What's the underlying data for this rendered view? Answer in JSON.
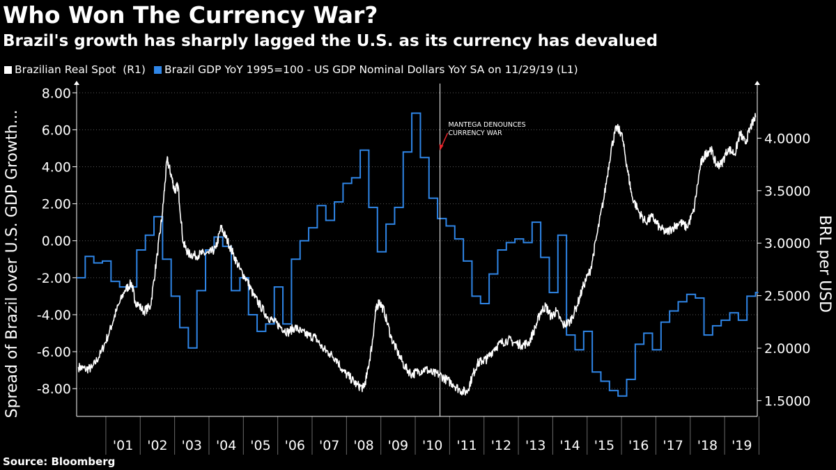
{
  "title": "Who Won The Currency War?",
  "subtitle": "Brazil's growth has sharply lagged the U.S. as its currency has devalued",
  "source": "Source: Bloomberg",
  "colors": {
    "background": "#000000",
    "brl_series": "#ffffff",
    "gdp_series": "#2f86e8",
    "annotation_arrow": "#e8262c"
  },
  "chart_data": {
    "type": "line",
    "legend": [
      {
        "name": "Brazilian Real Spot  (R1)",
        "color": "#ffffff"
      },
      {
        "name": "Brazil GDP YoY 1995=100 - US GDP Nominal Dollars YoY SA on 11/29/19 (L1)",
        "color": "#2f86e8"
      }
    ],
    "left_axis": {
      "label": "Spread of Brazil over U.S. GDP Growth...",
      "range": [
        -9.5,
        8.5
      ],
      "ticks": [
        8,
        6,
        4,
        2,
        0,
        -2,
        -4,
        -6,
        -8
      ],
      "tick_labels": [
        "8.00",
        "6.00",
        "4.00",
        "2.00",
        "0.00",
        "-2.00",
        "-4.00",
        "-6.00",
        "-8.00"
      ]
    },
    "right_axis": {
      "label": "BRL per USD",
      "range": [
        1.35,
        4.52
      ],
      "ticks": [
        4.0,
        3.5,
        3.0,
        2.5,
        2.0,
        1.5
      ],
      "tick_labels": [
        "4.0000",
        "3.5000",
        "3.0000",
        "2.5000",
        "2.0000",
        "1.5000"
      ]
    },
    "x_axis": {
      "range": [
        2000.15,
        2019.95
      ],
      "tick_labels": [
        "'01",
        "'02",
        "'03",
        "'04",
        "'05",
        "'06",
        "'07",
        "'08",
        "'09",
        "'10",
        "'11",
        "'12",
        "'13",
        "'14",
        "'15",
        "'16",
        "'17",
        "'18",
        "'19"
      ]
    },
    "annotation": {
      "label_lines": [
        "MANTEGA DENOUNCES",
        "CURRENCY WAR"
      ],
      "x": 2010.72
    },
    "series": [
      {
        "name": "Brazilian Real Spot  (R1)",
        "axis": "right",
        "x": [
          2000.2,
          2000.4,
          2000.6,
          2000.85,
          2001.1,
          2001.3,
          2001.55,
          2001.75,
          2001.85,
          2002.1,
          2002.3,
          2002.5,
          2002.65,
          2002.78,
          2002.9,
          2003.0,
          2003.1,
          2003.25,
          2003.4,
          2003.6,
          2003.8,
          2004.0,
          2004.2,
          2004.35,
          2004.5,
          2004.7,
          2004.9,
          2005.1,
          2005.3,
          2005.5,
          2005.7,
          2005.9,
          2006.1,
          2006.3,
          2006.5,
          2006.7,
          2006.9,
          2007.1,
          2007.3,
          2007.5,
          2007.7,
          2007.9,
          2008.1,
          2008.3,
          2008.5,
          2008.6,
          2008.75,
          2008.85,
          2008.95,
          2009.1,
          2009.3,
          2009.5,
          2009.7,
          2009.9,
          2010.1,
          2010.3,
          2010.5,
          2010.7,
          2010.9,
          2011.1,
          2011.3,
          2011.5,
          2011.65,
          2011.8,
          2011.95,
          2012.1,
          2012.3,
          2012.5,
          2012.7,
          2012.9,
          2013.1,
          2013.3,
          2013.5,
          2013.65,
          2013.8,
          2013.95,
          2014.1,
          2014.3,
          2014.5,
          2014.7,
          2014.9,
          2015.1,
          2015.3,
          2015.5,
          2015.7,
          2015.85,
          2016.0,
          2016.15,
          2016.3,
          2016.5,
          2016.7,
          2016.9,
          2017.1,
          2017.3,
          2017.5,
          2017.7,
          2017.9,
          2018.1,
          2018.3,
          2018.45,
          2018.6,
          2018.75,
          2018.9,
          2019.1,
          2019.3,
          2019.45,
          2019.6,
          2019.75,
          2019.9
        ],
        "values": [
          1.82,
          1.8,
          1.81,
          1.95,
          2.15,
          2.35,
          2.55,
          2.62,
          2.45,
          2.35,
          2.4,
          2.9,
          3.3,
          3.8,
          3.65,
          3.5,
          3.55,
          3.0,
          2.9,
          2.88,
          2.9,
          2.9,
          2.95,
          3.15,
          3.05,
          2.9,
          2.75,
          2.65,
          2.5,
          2.4,
          2.3,
          2.25,
          2.2,
          2.15,
          2.2,
          2.15,
          2.12,
          2.1,
          2.0,
          1.95,
          1.9,
          1.78,
          1.72,
          1.65,
          1.62,
          1.75,
          2.05,
          2.35,
          2.45,
          2.35,
          2.1,
          1.95,
          1.82,
          1.75,
          1.78,
          1.8,
          1.76,
          1.75,
          1.7,
          1.66,
          1.6,
          1.58,
          1.72,
          1.85,
          1.88,
          1.9,
          2.0,
          2.05,
          2.08,
          2.05,
          2.03,
          2.05,
          2.2,
          2.35,
          2.4,
          2.3,
          2.35,
          2.22,
          2.25,
          2.4,
          2.6,
          2.75,
          3.1,
          3.45,
          3.9,
          4.1,
          4.05,
          3.75,
          3.45,
          3.3,
          3.2,
          3.25,
          3.15,
          3.1,
          3.15,
          3.2,
          3.15,
          3.3,
          3.75,
          3.85,
          3.9,
          3.75,
          3.75,
          3.9,
          3.85,
          4.05,
          3.95,
          4.1,
          4.2
        ]
      },
      {
        "name": "Brazil GDP YoY 1995=100 - US GDP Nominal Dollars YoY SA on 11/29/19 (L1)",
        "axis": "left",
        "x": [
          2000.15,
          2000.4,
          2000.65,
          2000.9,
          2001.15,
          2001.4,
          2001.65,
          2001.9,
          2002.15,
          2002.4,
          2002.65,
          2002.9,
          2003.15,
          2003.4,
          2003.65,
          2003.9,
          2004.15,
          2004.4,
          2004.65,
          2004.9,
          2005.15,
          2005.4,
          2005.65,
          2005.9,
          2006.15,
          2006.4,
          2006.65,
          2006.9,
          2007.15,
          2007.4,
          2007.65,
          2007.9,
          2008.15,
          2008.4,
          2008.65,
          2008.9,
          2009.15,
          2009.4,
          2009.65,
          2009.9,
          2010.15,
          2010.4,
          2010.65,
          2010.9,
          2011.15,
          2011.4,
          2011.65,
          2011.9,
          2012.15,
          2012.4,
          2012.65,
          2012.9,
          2013.15,
          2013.4,
          2013.65,
          2013.9,
          2014.15,
          2014.4,
          2014.65,
          2014.9,
          2015.15,
          2015.4,
          2015.65,
          2015.9,
          2016.15,
          2016.4,
          2016.65,
          2016.9,
          2017.15,
          2017.4,
          2017.65,
          2017.9,
          2018.15,
          2018.4,
          2018.65,
          2018.9,
          2019.15,
          2019.4,
          2019.65,
          2019.9
        ],
        "values": [
          -2.0,
          -0.85,
          -1.2,
          -1.1,
          -2.2,
          -2.5,
          -2.5,
          -0.5,
          0.3,
          1.3,
          -1.0,
          -3.0,
          -4.7,
          -5.8,
          -2.7,
          -0.5,
          0.2,
          -0.3,
          -2.7,
          -2.0,
          -4.0,
          -4.9,
          -4.5,
          -2.5,
          -4.5,
          -1.0,
          0.0,
          0.7,
          1.9,
          1.1,
          2.1,
          3.1,
          3.4,
          4.9,
          1.8,
          -0.6,
          0.9,
          1.8,
          4.8,
          6.9,
          4.5,
          2.3,
          1.2,
          0.8,
          0.1,
          -1.1,
          -3.0,
          -3.4,
          -1.8,
          -0.5,
          -0.1,
          0.1,
          -0.1,
          1.0,
          -0.9,
          -2.8,
          0.3,
          -5.1,
          -5.9,
          -4.9,
          -7.1,
          -7.6,
          -8.1,
          -8.4,
          -7.5,
          -5.6,
          -5.0,
          -5.9,
          -4.4,
          -3.8,
          -3.3,
          -2.9,
          -3.1,
          -5.1,
          -4.6,
          -4.3,
          -3.9,
          -4.3,
          -3.0,
          -2.8
        ]
      }
    ]
  }
}
